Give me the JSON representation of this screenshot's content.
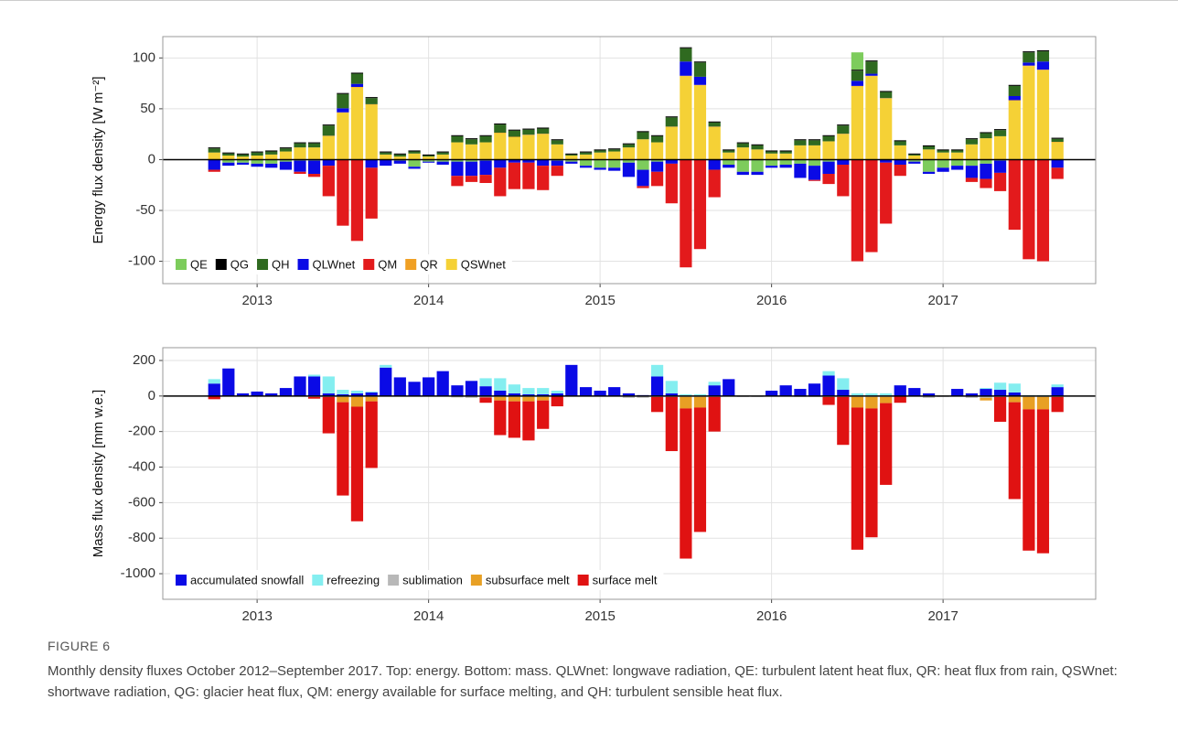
{
  "figure_label": "FIGURE 6",
  "caption": "Monthly density fluxes October 2012–September 2017. Top: energy. Bottom: mass. QLWnet: longwave radiation, QE: turbulent latent heat flux, QR: heat flux from rain, QSWnet: shortwave radiation, QG: glacier heat flux, QM: energy available for surface melting, and QH: turbulent sensible heat flux.",
  "chart_data": [
    {
      "type": "bar",
      "stacked": true,
      "y_label": "Energy flux density [W m⁻²]",
      "xlim": [
        2012.45,
        2017.89
      ],
      "xticks": [
        2013,
        2014,
        2015,
        2016,
        2017
      ],
      "ylim": [
        -122,
        121
      ],
      "yticks": [
        -100,
        -50,
        0,
        50,
        100
      ],
      "grid": true,
      "legend": "bottom-left",
      "x": [
        2012.75,
        2012.833,
        2012.917,
        2013,
        2013.083,
        2013.167,
        2013.25,
        2013.333,
        2013.417,
        2013.5,
        2013.583,
        2013.667,
        2013.75,
        2013.833,
        2013.917,
        2014,
        2014.083,
        2014.167,
        2014.25,
        2014.333,
        2014.417,
        2014.5,
        2014.583,
        2014.667,
        2014.75,
        2014.833,
        2014.917,
        2015,
        2015.083,
        2015.167,
        2015.25,
        2015.333,
        2015.417,
        2015.5,
        2015.583,
        2015.667,
        2015.75,
        2015.833,
        2015.917,
        2016,
        2016.083,
        2016.167,
        2016.25,
        2016.333,
        2016.417,
        2016.5,
        2016.583,
        2016.667,
        2016.75,
        2016.833,
        2016.917,
        2017,
        2017.083,
        2017.167,
        2017.25,
        2017.333,
        2017.417,
        2017.5,
        2017.583,
        2017.667
      ],
      "series": [
        {
          "name": "QE",
          "color": "#7dcc5c",
          "values": [
            0,
            -3,
            -3,
            -4,
            -4,
            -2,
            -1,
            -1,
            0,
            0,
            0,
            0,
            0,
            -1,
            -7,
            -2,
            -2,
            -2,
            -2,
            -1,
            0,
            0,
            0,
            0,
            -1,
            -2,
            -6,
            -8,
            -8,
            -3,
            -10,
            -2,
            0,
            0,
            0,
            0,
            -5,
            -12,
            -12,
            -6,
            -5,
            -4,
            -6,
            -2,
            0,
            17,
            0,
            0,
            0,
            -2,
            -12,
            -8,
            -6,
            -6,
            -4,
            -1,
            0,
            0,
            0,
            0
          ]
        },
        {
          "name": "QG",
          "color": "#000000",
          "values": [
            1,
            1,
            1,
            1,
            1,
            1,
            1,
            1,
            1,
            1,
            1,
            1,
            1,
            1,
            1,
            1,
            1,
            1,
            1,
            1,
            1,
            1,
            1,
            1,
            1,
            1,
            1,
            1,
            1,
            1,
            1,
            1,
            1,
            1,
            1,
            1,
            1,
            1,
            1,
            1,
            1,
            1,
            1,
            1,
            1,
            1,
            1,
            1,
            1,
            1,
            1,
            1,
            1,
            1,
            1,
            1,
            1,
            1,
            1,
            1
          ]
        },
        {
          "name": "QH",
          "color": "#2f6a20",
          "values": [
            4,
            2,
            2,
            3,
            3,
            3,
            4,
            4,
            10,
            14,
            10,
            6,
            2,
            2,
            2,
            1,
            2,
            6,
            5,
            6,
            8,
            6,
            5,
            5,
            4,
            1,
            2,
            2,
            2,
            3,
            7,
            6,
            9,
            13,
            14,
            4,
            2,
            4,
            4,
            2,
            2,
            5,
            5,
            5,
            8,
            10,
            12,
            6,
            4,
            1,
            3,
            2,
            2,
            5,
            5,
            6,
            10,
            10,
            10,
            3
          ]
        },
        {
          "name": "QLWnet",
          "color": "#0a0ae6",
          "values": [
            -10,
            -3,
            -2,
            -3,
            -4,
            -8,
            -11,
            -13,
            -6,
            4,
            3,
            -8,
            -6,
            -3,
            -2,
            -1,
            -3,
            -14,
            -14,
            -14,
            -8,
            -3,
            -3,
            -6,
            -5,
            -2,
            -2,
            -2,
            -3,
            -14,
            -16,
            -10,
            -4,
            14,
            8,
            -10,
            -3,
            -3,
            -3,
            -2,
            -3,
            -14,
            -14,
            -12,
            -5,
            5,
            2,
            -3,
            -5,
            -2,
            -2,
            -4,
            -4,
            -12,
            -15,
            -12,
            4,
            3,
            8,
            -8
          ]
        },
        {
          "name": "QM",
          "color": "#e31a1c",
          "values": [
            -2,
            0,
            0,
            0,
            0,
            0,
            -2,
            -3,
            -30,
            -65,
            -80,
            -50,
            0,
            0,
            0,
            0,
            0,
            -10,
            -6,
            -8,
            -28,
            -26,
            -26,
            -24,
            -10,
            0,
            0,
            0,
            0,
            0,
            -2,
            -14,
            -39,
            -106,
            -88,
            -27,
            0,
            0,
            0,
            0,
            0,
            0,
            -1,
            -10,
            -31,
            -100,
            -91,
            -60,
            -11,
            0,
            0,
            0,
            0,
            -4,
            -9,
            -18,
            -69,
            -98,
            -100,
            -11
          ]
        },
        {
          "name": "QR",
          "color": "#f0a024",
          "values": [
            0,
            0,
            0,
            0,
            0,
            0,
            0,
            0,
            0.5,
            0.5,
            0.5,
            0.5,
            0,
            0,
            0,
            0,
            0,
            0,
            0,
            0,
            0.5,
            0.5,
            0.5,
            0.5,
            0,
            0,
            0,
            0,
            0,
            0,
            0,
            0,
            0.5,
            0.5,
            0.5,
            0.5,
            0,
            0,
            0,
            0,
            0,
            0,
            0,
            0,
            0.5,
            0.5,
            0.5,
            0.5,
            0,
            0,
            0,
            0,
            0,
            0,
            0,
            0,
            0.5,
            0.5,
            0.5,
            0.5
          ]
        },
        {
          "name": "QSWnet",
          "color": "#f5d136",
          "values": [
            7,
            4,
            3,
            4,
            5,
            8,
            12,
            12,
            23,
            46,
            71,
            54,
            5,
            3,
            6,
            3,
            5,
            17,
            15,
            17,
            26,
            22,
            24,
            25,
            15,
            4,
            5,
            7,
            8,
            12,
            20,
            17,
            32,
            82,
            73,
            32,
            7,
            12,
            10,
            6,
            6,
            14,
            14,
            18,
            25,
            72,
            82,
            60,
            14,
            4,
            10,
            7,
            7,
            15,
            21,
            23,
            58,
            92,
            88,
            17
          ]
        }
      ]
    },
    {
      "type": "bar",
      "stacked": true,
      "y_label": "Mass flux density [mm w.e.]",
      "xlim": [
        2012.45,
        2017.89
      ],
      "xticks": [
        2013,
        2014,
        2015,
        2016,
        2017
      ],
      "ylim": [
        -1144,
        272
      ],
      "yticks": [
        -1000,
        -800,
        -600,
        -400,
        -200,
        0,
        200
      ],
      "grid": true,
      "legend": "bottom-left",
      "x": [
        2012.75,
        2012.833,
        2012.917,
        2013,
        2013.083,
        2013.167,
        2013.25,
        2013.333,
        2013.417,
        2013.5,
        2013.583,
        2013.667,
        2013.75,
        2013.833,
        2013.917,
        2014,
        2014.083,
        2014.167,
        2014.25,
        2014.333,
        2014.417,
        2014.5,
        2014.583,
        2014.667,
        2014.75,
        2014.833,
        2014.917,
        2015,
        2015.083,
        2015.167,
        2015.25,
        2015.333,
        2015.417,
        2015.5,
        2015.583,
        2015.667,
        2015.75,
        2015.833,
        2015.917,
        2016,
        2016.083,
        2016.167,
        2016.25,
        2016.333,
        2016.417,
        2016.5,
        2016.583,
        2016.667,
        2016.75,
        2016.833,
        2016.917,
        2017,
        2017.083,
        2017.167,
        2017.25,
        2017.333,
        2017.417,
        2017.5,
        2017.583,
        2017.667
      ],
      "series": [
        {
          "name": "accumulated snowfall",
          "color": "#0a0ae6",
          "values": [
            70,
            155,
            15,
            25,
            15,
            45,
            110,
            110,
            15,
            10,
            15,
            20,
            160,
            105,
            80,
            105,
            140,
            60,
            85,
            55,
            30,
            15,
            10,
            10,
            15,
            175,
            50,
            30,
            50,
            15,
            5,
            110,
            15,
            0,
            0,
            60,
            95,
            0,
            0,
            30,
            60,
            40,
            70,
            115,
            35,
            0,
            0,
            0,
            60,
            45,
            15,
            0,
            40,
            15,
            40,
            35,
            20,
            0,
            0,
            50
          ]
        },
        {
          "name": "refreezing",
          "color": "#84eef0",
          "values": [
            25,
            0,
            0,
            0,
            0,
            0,
            0,
            10,
            95,
            25,
            15,
            5,
            15,
            0,
            0,
            0,
            0,
            0,
            0,
            45,
            70,
            50,
            35,
            35,
            15,
            0,
            0,
            0,
            0,
            0,
            0,
            65,
            70,
            10,
            10,
            20,
            0,
            0,
            0,
            0,
            0,
            0,
            0,
            25,
            65,
            15,
            15,
            15,
            0,
            0,
            0,
            0,
            0,
            0,
            5,
            40,
            50,
            5,
            5,
            15
          ]
        },
        {
          "name": "sublimation",
          "color": "#b8b8b8",
          "values": [
            -3,
            -2,
            -2,
            -2,
            -3,
            -3,
            -3,
            -5,
            -5,
            -5,
            -5,
            -5,
            -2,
            -2,
            -2,
            -2,
            -2,
            -8,
            -10,
            -8,
            -5,
            -5,
            -5,
            -5,
            -3,
            -2,
            -2,
            -2,
            -3,
            -10,
            -10,
            -5,
            -5,
            -5,
            -5,
            -5,
            -3,
            -5,
            -5,
            -3,
            -3,
            -5,
            -5,
            -5,
            -5,
            -5,
            -5,
            -5,
            -3,
            -3,
            -10,
            -5,
            -3,
            -10,
            -10,
            -5,
            -5,
            -5,
            -5,
            -5
          ]
        },
        {
          "name": "subsurface melt",
          "color": "#e8a024",
          "values": [
            0,
            0,
            0,
            0,
            0,
            0,
            0,
            0,
            0,
            -30,
            -55,
            -25,
            0,
            0,
            0,
            0,
            0,
            0,
            0,
            0,
            -20,
            -25,
            -25,
            -20,
            0,
            0,
            0,
            0,
            0,
            0,
            0,
            0,
            0,
            -65,
            -60,
            0,
            0,
            0,
            0,
            0,
            0,
            0,
            0,
            0,
            0,
            -60,
            -65,
            -35,
            0,
            0,
            0,
            0,
            0,
            0,
            -15,
            0,
            -30,
            -70,
            -70,
            0
          ]
        },
        {
          "name": "surface melt",
          "color": "#e01212",
          "values": [
            -15,
            0,
            0,
            0,
            0,
            0,
            0,
            -10,
            -205,
            -525,
            -645,
            -375,
            0,
            0,
            0,
            0,
            0,
            0,
            0,
            -30,
            -195,
            -205,
            -220,
            -160,
            -55,
            0,
            0,
            0,
            0,
            0,
            0,
            -85,
            -305,
            -845,
            -700,
            -195,
            0,
            0,
            0,
            0,
            0,
            0,
            0,
            -45,
            -270,
            -800,
            -725,
            -460,
            -35,
            0,
            0,
            0,
            0,
            0,
            0,
            -140,
            -545,
            -795,
            -810,
            -85
          ]
        }
      ]
    }
  ]
}
